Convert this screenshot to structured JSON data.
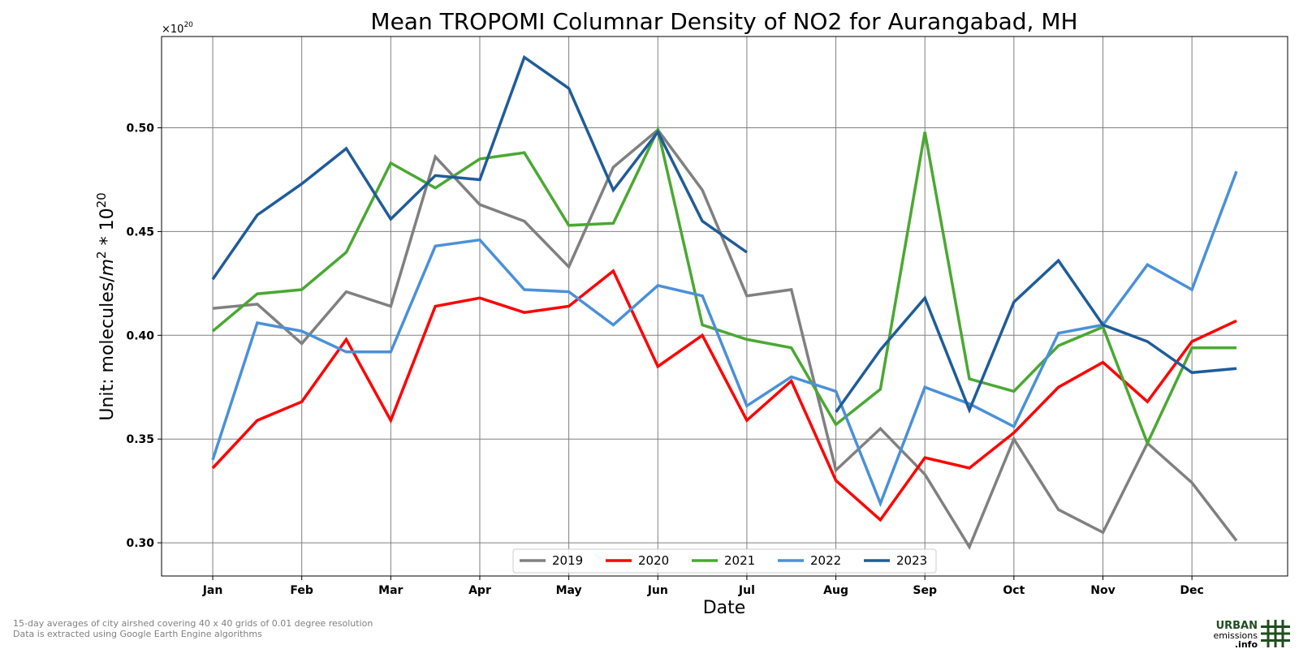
{
  "chart_data": {
    "type": "line",
    "title": "Mean TROPOMI Columnar Density of NO2 for Aurangabad, MH",
    "xlabel": "Date",
    "ylabel_prefix": "Unit: molecules/",
    "ylabel_unit": "m",
    "ylabel_unit_sup": "2",
    "ylabel_mid": " * 10",
    "ylabel_sup": "20",
    "offset_base": "×10",
    "offset_exp": "20",
    "ylim": [
      0.284,
      0.544
    ],
    "yticks": [
      0.3,
      0.35,
      0.4,
      0.45,
      0.5
    ],
    "ytick_labels": [
      "0.30",
      "0.35",
      "0.40",
      "0.45",
      "0.50"
    ],
    "xlim": [
      -0.575,
      12.075
    ],
    "xticks": [
      0,
      1,
      2,
      3,
      4,
      5,
      6,
      7,
      8,
      9,
      10,
      11
    ],
    "xtick_labels": [
      "Jan",
      "Feb",
      "Mar",
      "Apr",
      "May",
      "Jun",
      "Jul",
      "Aug",
      "Sep",
      "Oct",
      "Nov",
      "Dec"
    ],
    "grid": true,
    "legend_position": "bottom-center",
    "x": [
      0,
      0.5,
      1,
      1.5,
      2,
      2.5,
      3,
      3.5,
      4,
      4.5,
      5,
      5.5,
      6,
      6.5,
      7,
      7.5,
      8,
      8.5,
      9,
      9.5,
      10,
      10.5,
      11,
      11.5
    ],
    "series": [
      {
        "name": "2019",
        "color": "#808080",
        "values": [
          0.413,
          0.415,
          0.396,
          0.421,
          0.414,
          0.486,
          0.463,
          0.455,
          0.433,
          0.481,
          0.499,
          0.47,
          0.419,
          0.422,
          0.335,
          0.355,
          0.333,
          0.298,
          0.35,
          0.316,
          0.305,
          0.348,
          0.329,
          0.301
        ]
      },
      {
        "name": "2020",
        "color": "#ff0000",
        "values": [
          0.336,
          0.359,
          0.368,
          0.398,
          0.359,
          0.414,
          0.418,
          0.411,
          0.414,
          0.431,
          0.385,
          0.4,
          0.359,
          0.378,
          0.33,
          0.311,
          0.341,
          0.336,
          0.353,
          0.375,
          0.387,
          0.368,
          0.397,
          0.407
        ]
      },
      {
        "name": "2021",
        "color": "#4aa832",
        "values": [
          0.402,
          0.42,
          0.422,
          0.44,
          0.483,
          0.471,
          0.485,
          0.488,
          0.453,
          0.454,
          0.499,
          0.405,
          0.398,
          0.394,
          0.357,
          0.374,
          0.498,
          0.379,
          0.373,
          0.395,
          0.404,
          0.348,
          0.394,
          0.394
        ]
      },
      {
        "name": "2022",
        "color": "#4a90d9",
        "values": [
          0.34,
          0.406,
          0.402,
          0.392,
          0.392,
          0.443,
          0.446,
          0.422,
          0.421,
          0.405,
          0.424,
          0.419,
          0.366,
          0.38,
          0.373,
          0.319,
          0.375,
          0.367,
          0.356,
          0.401,
          0.405,
          0.434,
          0.422,
          0.479
        ]
      },
      {
        "name": "2023",
        "color": "#1f5c99",
        "values": [
          0.427,
          0.458,
          0.473,
          0.49,
          0.456,
          0.477,
          0.475,
          0.534,
          0.519,
          0.47,
          0.498,
          0.455,
          0.44,
          null,
          0.363,
          0.393,
          0.418,
          0.364,
          0.416,
          0.436,
          0.405,
          0.397,
          0.382,
          0.384
        ]
      }
    ]
  },
  "footnote": {
    "line1": "15-day averages of city airshed covering 40 x 40 grids of 0.01 degree resolution",
    "line2": "Data is extracted using Google Earth Engine algorithms"
  },
  "logo": {
    "line1": "URBAN",
    "line2": "emissions",
    "line3": ".info",
    "color": "#1f4e1f"
  }
}
